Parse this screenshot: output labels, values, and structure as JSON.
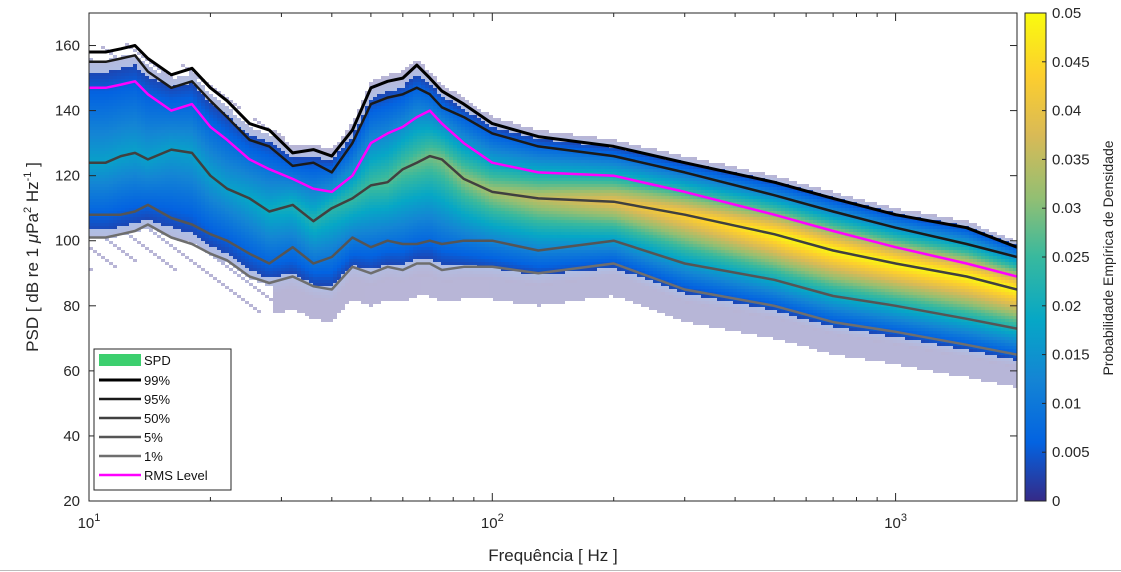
{
  "chart_data": {
    "type": "heatmap",
    "title": "",
    "xlabel": "Frequência [ Hz ]",
    "ylabel_parts": {
      "pre": "PSD [ dB re 1 ",
      "mu": "μ",
      "pa": "Pa",
      "sup2": "2",
      "hz": " Hz",
      "supm1": "-1",
      "post": " ]"
    },
    "x_scale": "log",
    "xlim": [
      10,
      2000
    ],
    "ylim": [
      20,
      170
    ],
    "x_ticks": [
      {
        "value": 10,
        "base": "10",
        "exp": "1"
      },
      {
        "value": 100,
        "base": "10",
        "exp": "2"
      },
      {
        "value": 1000,
        "base": "10",
        "exp": "3"
      }
    ],
    "y_ticks": [
      20,
      40,
      60,
      80,
      100,
      120,
      140,
      160
    ],
    "colorbar": {
      "label": "Probabilidade Empírica de Densidade",
      "min": 0,
      "max": 0.05,
      "ticks": [
        "0",
        "0.005",
        "0.01",
        "0.015",
        "0.02",
        "0.025",
        "0.03",
        "0.035",
        "0.04",
        "0.045",
        "0.05"
      ],
      "colormap": "parula"
    },
    "legend": {
      "placement": "lower-left",
      "entries": [
        "SPD",
        "99%",
        "95%",
        "50%",
        "5%",
        "1%",
        "RMS Level"
      ]
    },
    "series": [
      {
        "name": "99%",
        "color": "#000000",
        "x": [
          10,
          11,
          12,
          13,
          14,
          16,
          18,
          20,
          22,
          25,
          28,
          32,
          36,
          40,
          45,
          50,
          55,
          60,
          65,
          70,
          75,
          85,
          100,
          130,
          200,
          300,
          500,
          700,
          1000,
          1500,
          2000
        ],
        "y": [
          158,
          158,
          159,
          160,
          156,
          151,
          153,
          147,
          143,
          136,
          134,
          127,
          128,
          126,
          134,
          147,
          149,
          150,
          154,
          150,
          146,
          142,
          136,
          132,
          129,
          124,
          118,
          113,
          108,
          104,
          98
        ]
      },
      {
        "name": "95%",
        "color": "#1a1a1a",
        "x": [
          10,
          11,
          12,
          13,
          14,
          16,
          18,
          20,
          22,
          25,
          28,
          32,
          36,
          40,
          45,
          50,
          55,
          60,
          65,
          70,
          75,
          85,
          100,
          130,
          200,
          300,
          500,
          700,
          1000,
          1500,
          2000
        ],
        "y": [
          155,
          155,
          156,
          157,
          152,
          147,
          149,
          143,
          138,
          131,
          129,
          123,
          124,
          121,
          130,
          142,
          144,
          145,
          147,
          145,
          141,
          138,
          133,
          129,
          126,
          121,
          114,
          109,
          104,
          99,
          95
        ]
      },
      {
        "name": "50%",
        "color": "#404040",
        "x": [
          10,
          11,
          12,
          13,
          14,
          16,
          18,
          20,
          22,
          25,
          28,
          32,
          36,
          40,
          45,
          50,
          55,
          60,
          65,
          70,
          75,
          85,
          100,
          130,
          200,
          300,
          500,
          700,
          1000,
          1500,
          2000
        ],
        "y": [
          124,
          124,
          126,
          127,
          125,
          128,
          127,
          120,
          116,
          113,
          109,
          111,
          106,
          110,
          113,
          117,
          118,
          122,
          124,
          126,
          125,
          119,
          115,
          113,
          112,
          108,
          102,
          97,
          93,
          89,
          85
        ]
      },
      {
        "name": "5%",
        "color": "#555555",
        "x": [
          10,
          11,
          12,
          13,
          14,
          16,
          18,
          20,
          22,
          25,
          28,
          32,
          36,
          40,
          45,
          50,
          55,
          60,
          65,
          70,
          75,
          85,
          100,
          130,
          200,
          300,
          500,
          700,
          1000,
          1500,
          2000
        ],
        "y": [
          108,
          108,
          108,
          109,
          111,
          107,
          105,
          102,
          100,
          96,
          93,
          98,
          93,
          95,
          101,
          98,
          100,
          99,
          99,
          100,
          99,
          100,
          100,
          97,
          100,
          93,
          88,
          83,
          80,
          76,
          73
        ]
      },
      {
        "name": "1%",
        "color": "#6e6e6e",
        "x": [
          10,
          11,
          12,
          13,
          14,
          16,
          18,
          20,
          22,
          25,
          28,
          32,
          36,
          40,
          45,
          50,
          55,
          60,
          65,
          70,
          75,
          85,
          100,
          130,
          200,
          300,
          500,
          700,
          1000,
          1500,
          2000
        ],
        "y": [
          101,
          101,
          102,
          103,
          105,
          101,
          99,
          96,
          94,
          89,
          87,
          89,
          86,
          85,
          92,
          90,
          92,
          91,
          93,
          93,
          91,
          92,
          92,
          90,
          93,
          85,
          80,
          75,
          72,
          68,
          65
        ]
      },
      {
        "name": "RMS Level",
        "color": "#ff00ff",
        "x": [
          10,
          11,
          12,
          13,
          14,
          16,
          18,
          20,
          22,
          25,
          28,
          32,
          36,
          40,
          45,
          50,
          55,
          60,
          65,
          70,
          75,
          85,
          100,
          130,
          200,
          300,
          500,
          700,
          1000,
          1500,
          2000
        ],
        "y": [
          147,
          147,
          148,
          149,
          145,
          140,
          142,
          135,
          131,
          125,
          122,
          119,
          116,
          115,
          120,
          130,
          133,
          135,
          138,
          140,
          136,
          130,
          124,
          121,
          120,
          115,
          108,
          103,
          98,
          93,
          89
        ]
      }
    ]
  }
}
